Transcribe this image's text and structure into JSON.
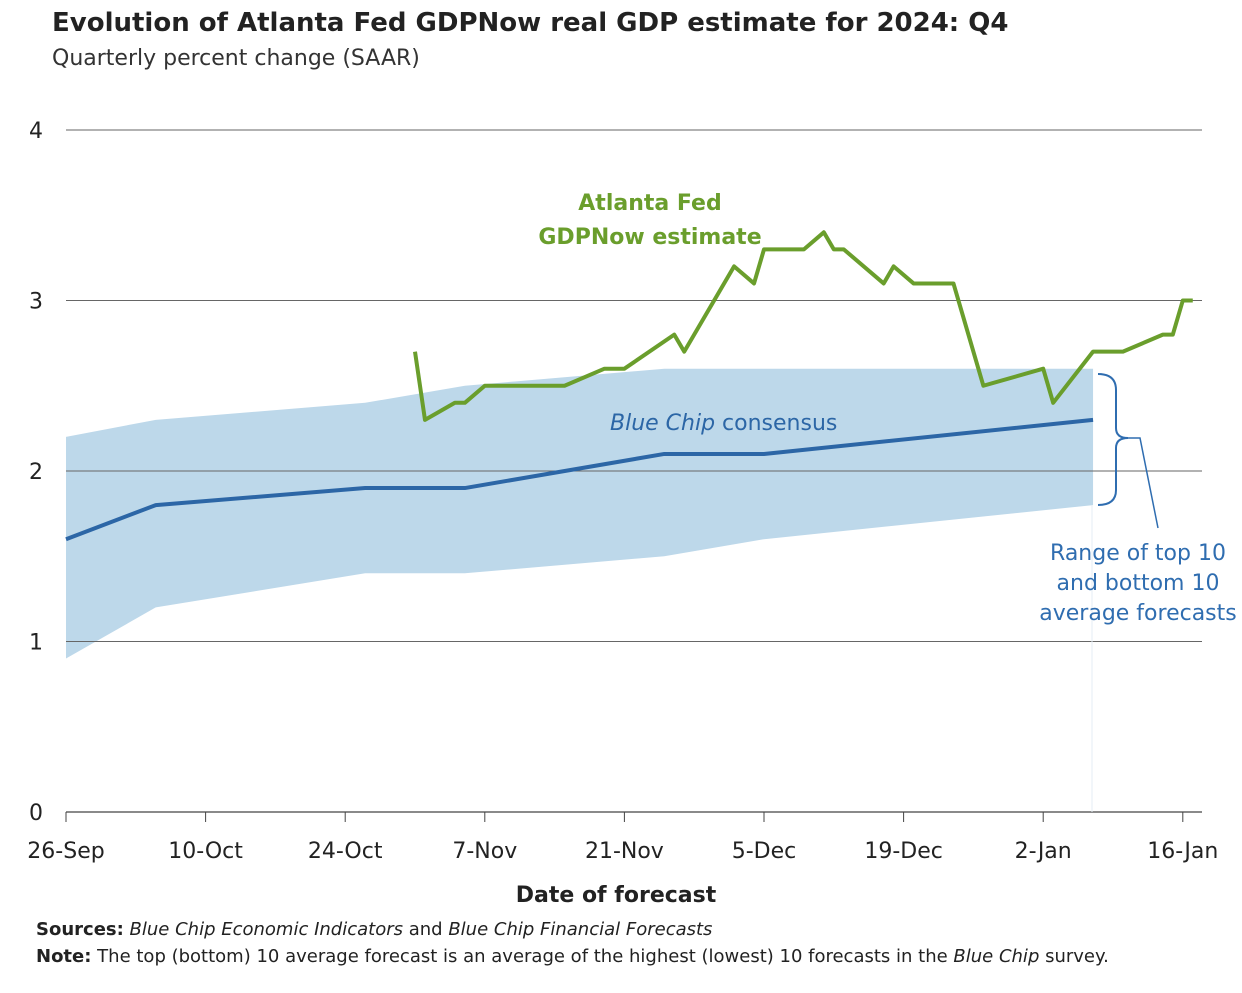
{
  "header": {
    "title": "Evolution of Atlanta Fed GDPNow real GDP estimate for 2024: Q4",
    "subtitle": "Quarterly percent change (SAAR)"
  },
  "colors": {
    "gdpnow": "#6a9e2c",
    "consensus": "#2c66a6",
    "band": "#bdd8ea",
    "annotation": "#2f6db0",
    "grid": "#666666"
  },
  "chart_data": {
    "type": "line",
    "title": "Evolution of Atlanta Fed GDPNow real GDP estimate for 2024: Q4",
    "xlabel": "Date of forecast",
    "ylabel": "Quarterly percent change (SAAR)",
    "ylim": [
      0,
      4
    ],
    "yticks": [
      "0",
      "1",
      "2",
      "3",
      "4"
    ],
    "x_unit": "days since 26-Sep-2024",
    "xticks": [
      {
        "day": 0,
        "label": "26-Sep"
      },
      {
        "day": 14,
        "label": "10-Oct"
      },
      {
        "day": 28,
        "label": "24-Oct"
      },
      {
        "day": 42,
        "label": "7-Nov"
      },
      {
        "day": 56,
        "label": "21-Nov"
      },
      {
        "day": 70,
        "label": "5-Dec"
      },
      {
        "day": 84,
        "label": "19-Dec"
      },
      {
        "day": 98,
        "label": "2-Jan"
      },
      {
        "day": 112,
        "label": "16-Jan"
      }
    ],
    "xlim": [
      0,
      114
    ],
    "grid": true,
    "series": [
      {
        "name": "Atlanta Fed GDPNow estimate",
        "label_lines": [
          "Atlanta Fed",
          "GDPNow estimate"
        ],
        "x": [
          35,
          36,
          39,
          40,
          42,
          50,
          54,
          56,
          61,
          62,
          67,
          69,
          70,
          74,
          76,
          77,
          78,
          82,
          83,
          85,
          89,
          92,
          98,
          99,
          103,
          106,
          110,
          111,
          112,
          113
        ],
        "y": [
          2.7,
          2.3,
          2.4,
          2.4,
          2.5,
          2.5,
          2.6,
          2.6,
          2.8,
          2.7,
          3.2,
          3.1,
          3.3,
          3.3,
          3.4,
          3.3,
          3.3,
          3.1,
          3.2,
          3.1,
          3.1,
          2.5,
          2.6,
          2.4,
          2.7,
          2.7,
          2.8,
          2.8,
          3.0,
          3.0
        ]
      },
      {
        "name": "Blue Chip consensus",
        "label_italic": "Blue Chip",
        "label_rest": " consensus",
        "x": [
          0,
          9,
          30,
          40,
          60,
          70,
          103
        ],
        "y": [
          1.6,
          1.8,
          1.9,
          1.9,
          2.1,
          2.1,
          2.3
        ]
      }
    ],
    "band": {
      "name": "Range of top 10 and bottom 10 average forecasts",
      "label_lines": [
        "Range of top 10",
        "and bottom 10",
        "average forecasts"
      ],
      "x": [
        0,
        9,
        30,
        40,
        60,
        70,
        103
      ],
      "upper": [
        2.2,
        2.3,
        2.4,
        2.5,
        2.6,
        2.6,
        2.6
      ],
      "lower": [
        0.9,
        1.2,
        1.4,
        1.4,
        1.5,
        1.6,
        1.8
      ]
    }
  },
  "footer": {
    "sources_label": "Sources:",
    "sources_1": "Blue Chip Economic Indicators",
    "sources_and": " and ",
    "sources_2": "Blue Chip Financial Forecasts",
    "note_label": "Note:",
    "note_text": " The top (bottom) 10 average forecast is an average of the highest (lowest) 10 forecasts in the ",
    "note_italic": "Blue Chip",
    "note_end": " survey."
  }
}
